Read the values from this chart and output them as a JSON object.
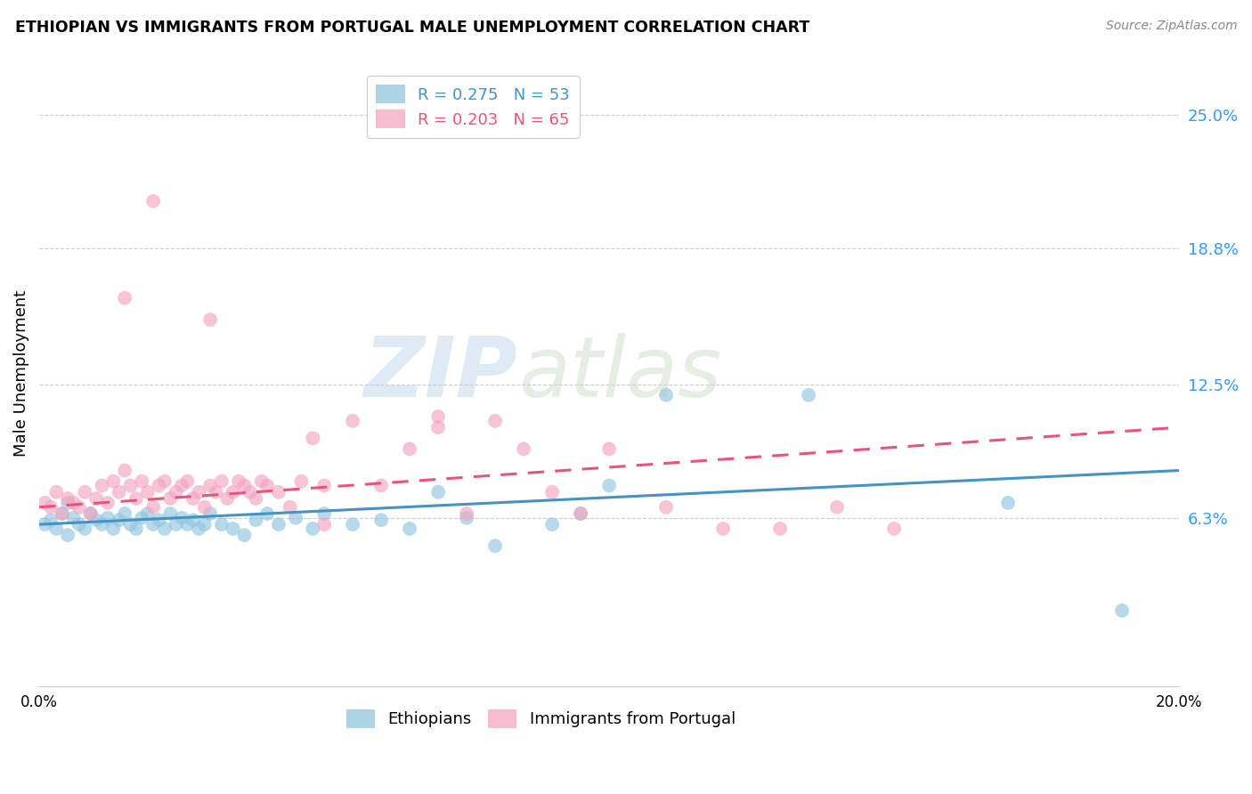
{
  "title": "ETHIOPIAN VS IMMIGRANTS FROM PORTUGAL MALE UNEMPLOYMENT CORRELATION CHART",
  "source": "Source: ZipAtlas.com",
  "ylabel": "Male Unemployment",
  "ytick_labels": [
    "25.0%",
    "18.8%",
    "12.5%",
    "6.3%"
  ],
  "ytick_values": [
    0.25,
    0.188,
    0.125,
    0.063
  ],
  "xlim": [
    0.0,
    0.2
  ],
  "ylim": [
    -0.015,
    0.275
  ],
  "blue_color": "#92c5de",
  "pink_color": "#f4a4c0",
  "blue_line_color": "#4393c3",
  "pink_line_color": "#e8547a",
  "legend_R_blue": "R = 0.275",
  "legend_N_blue": "N = 53",
  "legend_R_pink": "R = 0.203",
  "legend_N_pink": "N = 65",
  "watermark_zip": "ZIP",
  "watermark_atlas": "atlas",
  "ethiopians_x": [
    0.001,
    0.002,
    0.003,
    0.004,
    0.005,
    0.005,
    0.006,
    0.007,
    0.008,
    0.009,
    0.01,
    0.011,
    0.012,
    0.013,
    0.014,
    0.015,
    0.016,
    0.017,
    0.018,
    0.019,
    0.02,
    0.021,
    0.022,
    0.023,
    0.024,
    0.025,
    0.026,
    0.027,
    0.028,
    0.029,
    0.03,
    0.032,
    0.034,
    0.036,
    0.038,
    0.04,
    0.042,
    0.045,
    0.048,
    0.05,
    0.055,
    0.06,
    0.065,
    0.07,
    0.075,
    0.08,
    0.09,
    0.095,
    0.1,
    0.11,
    0.135,
    0.17,
    0.19
  ],
  "ethiopians_y": [
    0.06,
    0.062,
    0.058,
    0.065,
    0.055,
    0.07,
    0.063,
    0.06,
    0.058,
    0.065,
    0.062,
    0.06,
    0.063,
    0.058,
    0.062,
    0.065,
    0.06,
    0.058,
    0.063,
    0.065,
    0.06,
    0.062,
    0.058,
    0.065,
    0.06,
    0.063,
    0.06,
    0.062,
    0.058,
    0.06,
    0.065,
    0.06,
    0.058,
    0.055,
    0.062,
    0.065,
    0.06,
    0.063,
    0.058,
    0.065,
    0.06,
    0.062,
    0.058,
    0.075,
    0.063,
    0.05,
    0.06,
    0.065,
    0.078,
    0.12,
    0.12,
    0.07,
    0.02
  ],
  "portugal_x": [
    0.001,
    0.002,
    0.003,
    0.004,
    0.005,
    0.006,
    0.007,
    0.008,
    0.009,
    0.01,
    0.011,
    0.012,
    0.013,
    0.014,
    0.015,
    0.016,
    0.017,
    0.018,
    0.019,
    0.02,
    0.021,
    0.022,
    0.023,
    0.024,
    0.025,
    0.026,
    0.027,
    0.028,
    0.029,
    0.03,
    0.031,
    0.032,
    0.033,
    0.034,
    0.035,
    0.036,
    0.037,
    0.038,
    0.039,
    0.04,
    0.042,
    0.044,
    0.046,
    0.048,
    0.05,
    0.055,
    0.06,
    0.065,
    0.07,
    0.075,
    0.08,
    0.085,
    0.09,
    0.095,
    0.1,
    0.11,
    0.12,
    0.13,
    0.14,
    0.15,
    0.015,
    0.02,
    0.03,
    0.05,
    0.07
  ],
  "portugal_y": [
    0.07,
    0.068,
    0.075,
    0.065,
    0.072,
    0.07,
    0.068,
    0.075,
    0.065,
    0.072,
    0.078,
    0.07,
    0.08,
    0.075,
    0.085,
    0.078,
    0.072,
    0.08,
    0.075,
    0.068,
    0.078,
    0.08,
    0.072,
    0.075,
    0.078,
    0.08,
    0.072,
    0.075,
    0.068,
    0.078,
    0.075,
    0.08,
    0.072,
    0.075,
    0.08,
    0.078,
    0.075,
    0.072,
    0.08,
    0.078,
    0.075,
    0.068,
    0.08,
    0.1,
    0.078,
    0.108,
    0.078,
    0.095,
    0.105,
    0.065,
    0.108,
    0.095,
    0.075,
    0.065,
    0.095,
    0.068,
    0.058,
    0.058,
    0.068,
    0.058,
    0.165,
    0.21,
    0.155,
    0.06,
    0.11
  ],
  "blue_line_x0": 0.0,
  "blue_line_y0": 0.06,
  "blue_line_x1": 0.2,
  "blue_line_y1": 0.085,
  "pink_line_x0": 0.0,
  "pink_line_y0": 0.068,
  "pink_line_x1": 0.2,
  "pink_line_y1": 0.105
}
